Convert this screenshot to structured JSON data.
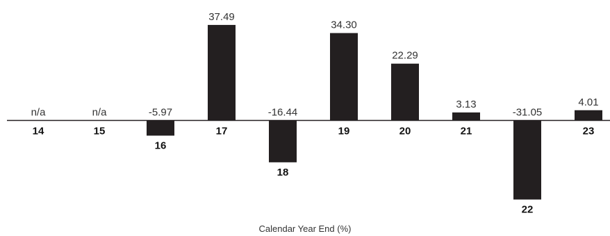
{
  "chart_data": {
    "type": "bar",
    "categories": [
      "14",
      "15",
      "16",
      "17",
      "18",
      "19",
      "20",
      "21",
      "22",
      "23"
    ],
    "values": [
      null,
      null,
      -5.97,
      37.49,
      -16.44,
      34.3,
      22.29,
      3.13,
      -31.05,
      4.01
    ],
    "value_labels": [
      "n/a",
      "n/a",
      "-5.97",
      "37.49",
      "-16.44",
      "34.30",
      "22.29",
      "3.13",
      "-31.05",
      "4.01"
    ],
    "xlabel": "Calendar Year End (%)",
    "ylim": [
      -31.05,
      37.49
    ],
    "grid": false,
    "legend": "none",
    "colors": {
      "bar": "#231f20",
      "axis": "#231f20"
    }
  }
}
